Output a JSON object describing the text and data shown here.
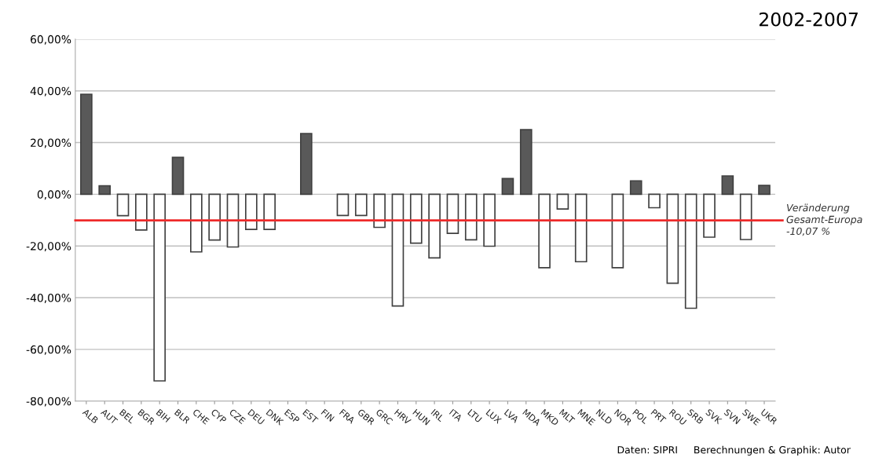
{
  "chart_data": {
    "type": "bar",
    "title": "2002-2007",
    "categories": [
      "ALB",
      "AUT",
      "BEL",
      "BGR",
      "BIH",
      "BLR",
      "CHE",
      "CYP",
      "CZE",
      "DEU",
      "DNK",
      "ESP",
      "EST",
      "FIN",
      "FRA",
      "GBR",
      "GRC",
      "HRV",
      "HUN",
      "IRL",
      "ITA",
      "LTU",
      "LUX",
      "LVA",
      "MDA",
      "MKD",
      "MLT",
      "MNE",
      "NLD",
      "NOR",
      "POL",
      "PRT",
      "ROU",
      "SRB",
      "SVK",
      "SVN",
      "SWE",
      "UKR"
    ],
    "values": [
      38.7,
      3.3,
      -8.3,
      -13.8,
      -72.2,
      14.3,
      -22.3,
      -17.7,
      -20.4,
      -13.6,
      -13.6,
      null,
      23.5,
      null,
      -8.2,
      -8.2,
      -12.8,
      -43.2,
      -18.9,
      -24.6,
      -15.1,
      -17.6,
      -20.1,
      6.1,
      25.0,
      -28.4,
      -5.7,
      -26.1,
      null,
      -28.4,
      5.2,
      -5.2,
      -34.4,
      -44.1,
      -16.6,
      7.1,
      -17.5,
      3.4
    ],
    "colors": [
      "#595959",
      "#595959",
      "#ffffff",
      "#ffffff",
      "#ffffff",
      "#595959",
      "#ffffff",
      "#ffffff",
      "#ffffff",
      "#ffffff",
      "#ffffff",
      "#ffffff",
      "#595959",
      "#ffffff",
      "#ffffff",
      "#ffffff",
      "#ffffff",
      "#ffffff",
      "#ffffff",
      "#ffffff",
      "#ffffff",
      "#ffffff",
      "#ffffff",
      "#595959",
      "#595959",
      "#ffffff",
      "#ffffff",
      "#ffffff",
      "#ffffff",
      "#ffffff",
      "#595959",
      "#ffffff",
      "#ffffff",
      "#ffffff",
      "#ffffff",
      "#595959",
      "#ffffff",
      "#595959"
    ],
    "ylim": [
      -80,
      60
    ],
    "yticks": [
      {
        "value": 60,
        "label": "60,00%"
      },
      {
        "value": 40,
        "label": "40,00%"
      },
      {
        "value": 20,
        "label": "20,00%"
      },
      {
        "value": 0,
        "label": "0,00%"
      },
      {
        "value": -20,
        "label": "-20,00%"
      },
      {
        "value": -40,
        "label": "-40,00%"
      },
      {
        "value": -60,
        "label": "-60,00%"
      },
      {
        "value": -80,
        "label": "-80,00%"
      }
    ],
    "grid": "y",
    "ref_lines": [
      {
        "axis": "y",
        "value": -10.07,
        "label": "Veränderung\nGesamt-Europa\n-10,07 %",
        "color": "#ee2a2a"
      }
    ],
    "annotations": [
      "Daten: SIPRI     Berechnungen & Graphik: Autor"
    ]
  }
}
